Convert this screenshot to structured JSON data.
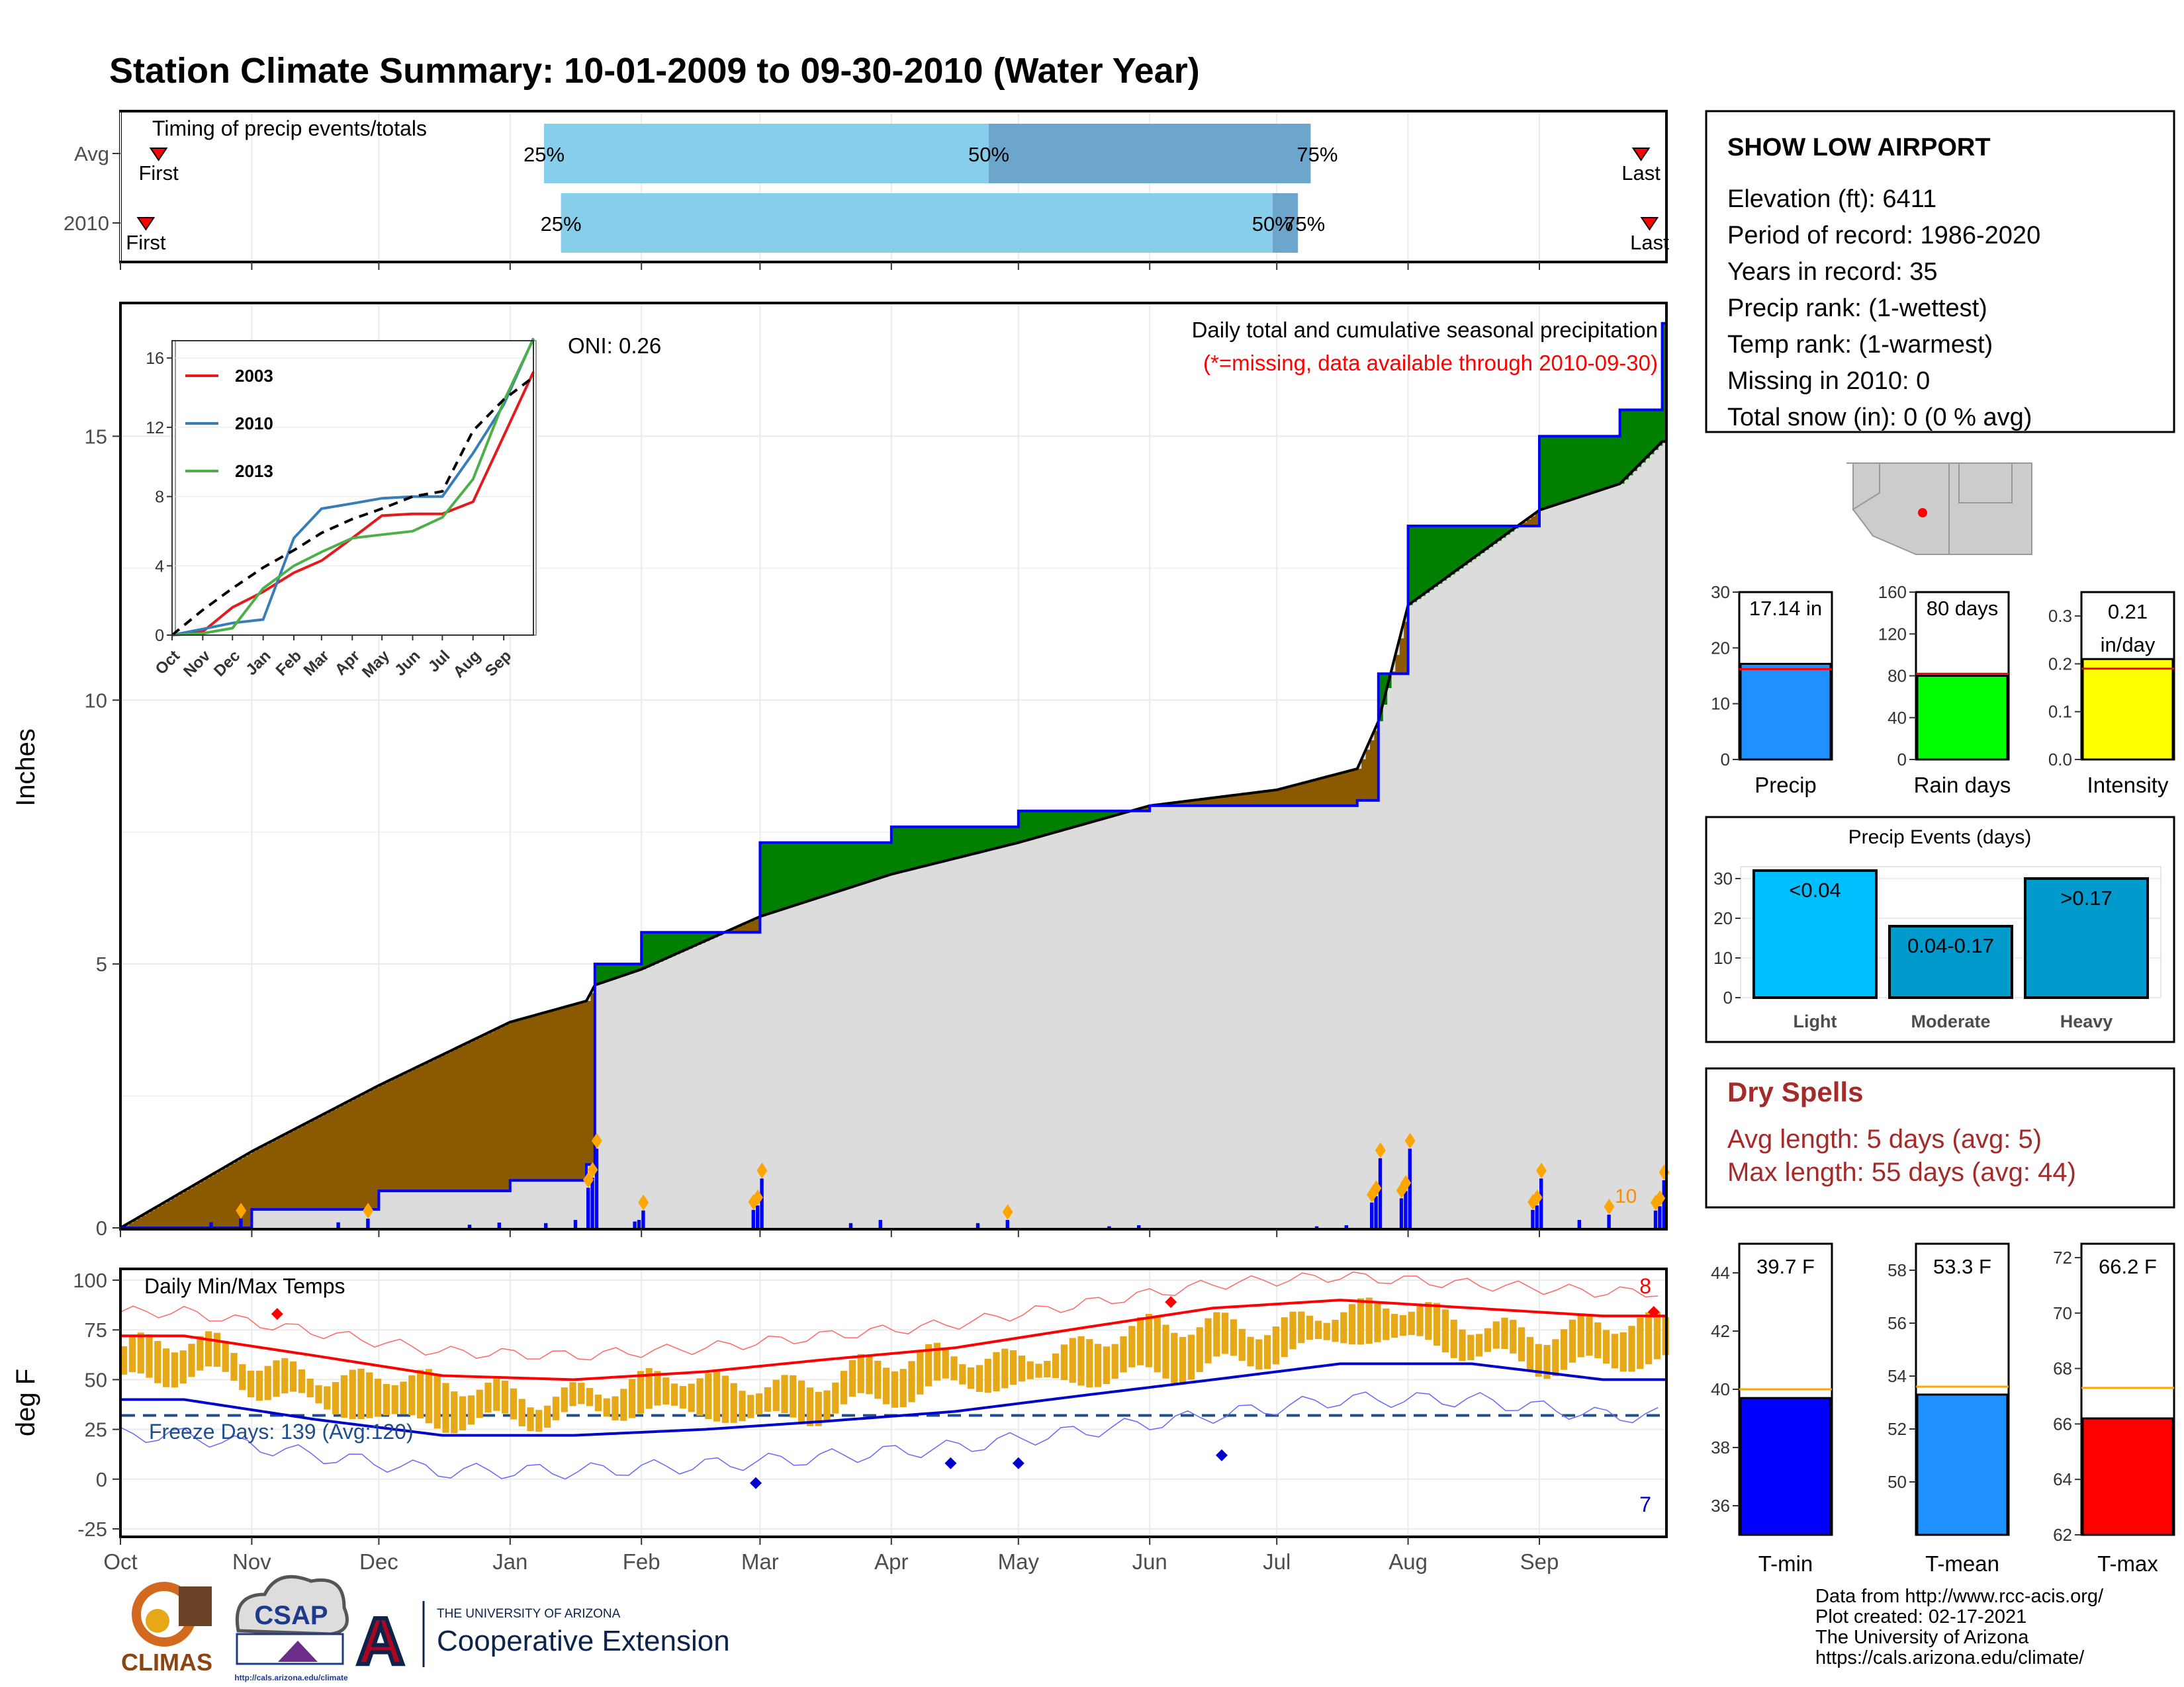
{
  "title": "Station Climate Summary: 10-01-2009 to 09-30-2010 (Water Year)",
  "colors": {
    "title": "#8B2500",
    "deficit": "#8B5A00",
    "surplus": "#008000",
    "avg_fill": "#DCDCDC",
    "obs_line": "#0000FF",
    "bar_light": "#87CEEB",
    "bar_dark": "#6CA6CD",
    "tmax": "#FF0000",
    "tmin": "#0000CD",
    "temp_bar": "#E6A817",
    "freeze": "#1F4E8C",
    "dry_text": "#A52A2A"
  },
  "timing": {
    "title": "Timing of precip events/totals",
    "rows": [
      {
        "label": "Avg",
        "first_doy": 9,
        "p25": 100,
        "p50": 205,
        "p75": 281,
        "last_doy": 359,
        "first_label": "First",
        "last_label": "Last",
        "p25_label": "25%",
        "p50_label": "50%",
        "p75_label": "75%"
      },
      {
        "label": "2010",
        "first_doy": 6,
        "p25": 104,
        "p50": 272,
        "p75": 278,
        "last_doy": 361,
        "first_label": "First",
        "last_label": "Last",
        "p25_label": "25%",
        "p50_label": "50%",
        "p75_label": "75%"
      }
    ]
  },
  "station": {
    "name": "SHOW LOW AIRPORT",
    "lines": [
      "Elevation (ft): 6411",
      "Period of record: 1986-2020",
      "Years in record: 35",
      "Precip rank:  (1-wettest)",
      "Temp rank:  (1-warmest)",
      "Missing in 2010: 0",
      "Total snow (in): 0 (0 % avg)"
    ]
  },
  "main_panel": {
    "ylabel": "Inches",
    "header_line1": "Daily total and cumulative seasonal precipitation",
    "header_line2": "(*=missing, data available through 2010-09-30)",
    "oni": "ONI: 0.26",
    "ymax_label_top": "10",
    "y_ticks": [
      "0",
      "5",
      "10",
      "15"
    ]
  },
  "temp_panel": {
    "ylabel": "deg F",
    "title": "Daily Min/Max Temps",
    "freeze_text": "Freeze Days: 139 (Avg:120)",
    "count_hot": "8",
    "count_cold": "7",
    "y_ticks": [
      "-25",
      "0",
      "25",
      "50",
      "75",
      "100"
    ]
  },
  "months": [
    "Oct",
    "Nov",
    "Dec",
    "Jan",
    "Feb",
    "Mar",
    "Apr",
    "May",
    "Jun",
    "Jul",
    "Aug",
    "Sep"
  ],
  "inset": {
    "legend": [
      "2003",
      "2010",
      "2013"
    ],
    "months": [
      "Oct",
      "Nov",
      "Dec",
      "Jan",
      "Feb",
      "Mar",
      "Apr",
      "May",
      "Jun",
      "Jul",
      "Aug",
      "Sep"
    ],
    "y_ticks": [
      "0",
      "4",
      "8",
      "12",
      "16"
    ]
  },
  "summary_bars": [
    {
      "name": "Precip",
      "value": 17.14,
      "avg": 16.2,
      "max": 30,
      "ticks": [
        "0",
        "10",
        "20",
        "30"
      ],
      "label": "17.14 in",
      "color": "#1E90FF"
    },
    {
      "name": "Rain days",
      "value": 80,
      "avg": 82,
      "max": 160,
      "ticks": [
        "0",
        "40",
        "80",
        "120",
        "160"
      ],
      "label": "80 days",
      "color": "#00FF00"
    },
    {
      "name": "Intensity",
      "value": 0.21,
      "avg": 0.19,
      "max": 0.35,
      "ticks": [
        "0.0",
        "0.1",
        "0.2",
        "0.3"
      ],
      "label_line1": "0.21",
      "label_line2": "in/day",
      "color": "#FFFF00"
    }
  ],
  "precip_events": {
    "title": "Precip Events (days)",
    "ticks": [
      "0",
      "10",
      "20",
      "30"
    ],
    "bars": [
      {
        "category": "Light",
        "value": 32,
        "label": "<0.04",
        "color": "#00BFFF"
      },
      {
        "category": "Moderate",
        "value": 18,
        "label": "0.04-0.17",
        "color": "#009ACD"
      },
      {
        "category": "Heavy",
        "value": 30,
        "label": ">0.17",
        "color": "#009ACD"
      }
    ]
  },
  "dry_spells": {
    "title": "Dry Spells",
    "line1": "Avg length: 5 days (avg: 5)",
    "line2": "Max length: 55 days (avg: 44)"
  },
  "temp_summary": [
    {
      "name": "T-min",
      "value": 39.7,
      "avg": 40.0,
      "label": "39.7 F",
      "min": 35,
      "max": 45,
      "ticks": [
        "36",
        "38",
        "40",
        "42",
        "44"
      ],
      "color": "#0000FF"
    },
    {
      "name": "T-mean",
      "value": 53.3,
      "avg": 53.6,
      "label": "53.3 F",
      "min": 48,
      "max": 59,
      "ticks": [
        "50",
        "52",
        "54",
        "56",
        "58"
      ],
      "color": "#1E90FF"
    },
    {
      "name": "T-max",
      "value": 66.2,
      "avg": 67.3,
      "label": "66.2 F",
      "min": 62,
      "max": 72.5,
      "ticks": [
        "62",
        "64",
        "66",
        "68",
        "70",
        "72"
      ],
      "color": "#FF0000"
    }
  ],
  "footer": {
    "lines": [
      "Data from http://www.rcc-acis.org/",
      "Plot created: 02-17-2021",
      "The University of Arizona",
      "https://cals.arizona.edu/climate/"
    ],
    "climas": "CLIMAS",
    "csap": "CSAP",
    "csap_url": "http://cals.arizona.edu/climate",
    "ua_small": "THE UNIVERSITY OF ARIZONA",
    "ua_big": "Cooperative Extension"
  },
  "chart_data": [
    {
      "type": "line",
      "title": "Daily total and cumulative seasonal precipitation",
      "ylabel": "Inches",
      "ylim": [
        0,
        17.5
      ],
      "x": [
        "2009-10-01",
        "2009-11-01",
        "2009-12-01",
        "2010-01-01",
        "2010-01-19",
        "2010-01-21",
        "2010-02-01",
        "2010-03-01",
        "2010-04-01",
        "2010-05-01",
        "2010-06-01",
        "2010-07-01",
        "2010-07-20",
        "2010-07-25",
        "2010-08-01",
        "2010-09-01",
        "2010-09-20",
        "2010-09-30"
      ],
      "series": [
        {
          "name": "2010",
          "values": [
            0,
            0.35,
            0.7,
            0.9,
            1.2,
            5.0,
            5.6,
            7.3,
            7.6,
            7.9,
            8.0,
            8.0,
            8.1,
            10.5,
            13.3,
            15.0,
            15.5,
            17.14
          ]
        },
        {
          "name": "Avg",
          "values": [
            0,
            1.45,
            2.7,
            3.9,
            4.3,
            4.6,
            4.9,
            5.9,
            6.7,
            7.3,
            8.0,
            8.3,
            8.7,
            9.6,
            11.8,
            13.6,
            14.1,
            14.9
          ]
        }
      ]
    },
    {
      "type": "bar",
      "title": "Timing of precip events/totals",
      "categories": [
        "Avg",
        "2010"
      ],
      "series": [
        {
          "name": "25%",
          "values": [
            100,
            104
          ]
        },
        {
          "name": "50%",
          "values": [
            205,
            272
          ]
        },
        {
          "name": "75%",
          "values": [
            281,
            278
          ]
        }
      ]
    },
    {
      "type": "line",
      "title": "Daily Min/Max Temps",
      "ylabel": "deg F",
      "ylim": [
        -28,
        105
      ],
      "x": [
        "Oct",
        "Nov",
        "Dec",
        "Jan",
        "Feb",
        "Mar",
        "Apr",
        "May",
        "Jun",
        "Jul",
        "Aug",
        "Sep"
      ],
      "series": [
        {
          "name": "Avg max",
          "values": [
            72,
            62,
            52,
            50,
            54,
            60,
            66,
            76,
            86,
            90,
            86,
            82
          ]
        },
        {
          "name": "Avg min",
          "values": [
            40,
            30,
            22,
            22,
            25,
            29,
            34,
            42,
            50,
            58,
            58,
            50
          ]
        }
      ]
    },
    {
      "type": "bar",
      "title": "Precip Events (days)",
      "categories": [
        "Light",
        "Moderate",
        "Heavy"
      ],
      "values": [
        32,
        18,
        30
      ]
    },
    {
      "type": "bar",
      "categories": [
        "Precip",
        "Rain days",
        "Intensity"
      ],
      "values": [
        17.14,
        80,
        0.21
      ]
    },
    {
      "type": "bar",
      "categories": [
        "T-min",
        "T-mean",
        "T-max"
      ],
      "values": [
        39.7,
        53.3,
        66.2
      ]
    }
  ]
}
